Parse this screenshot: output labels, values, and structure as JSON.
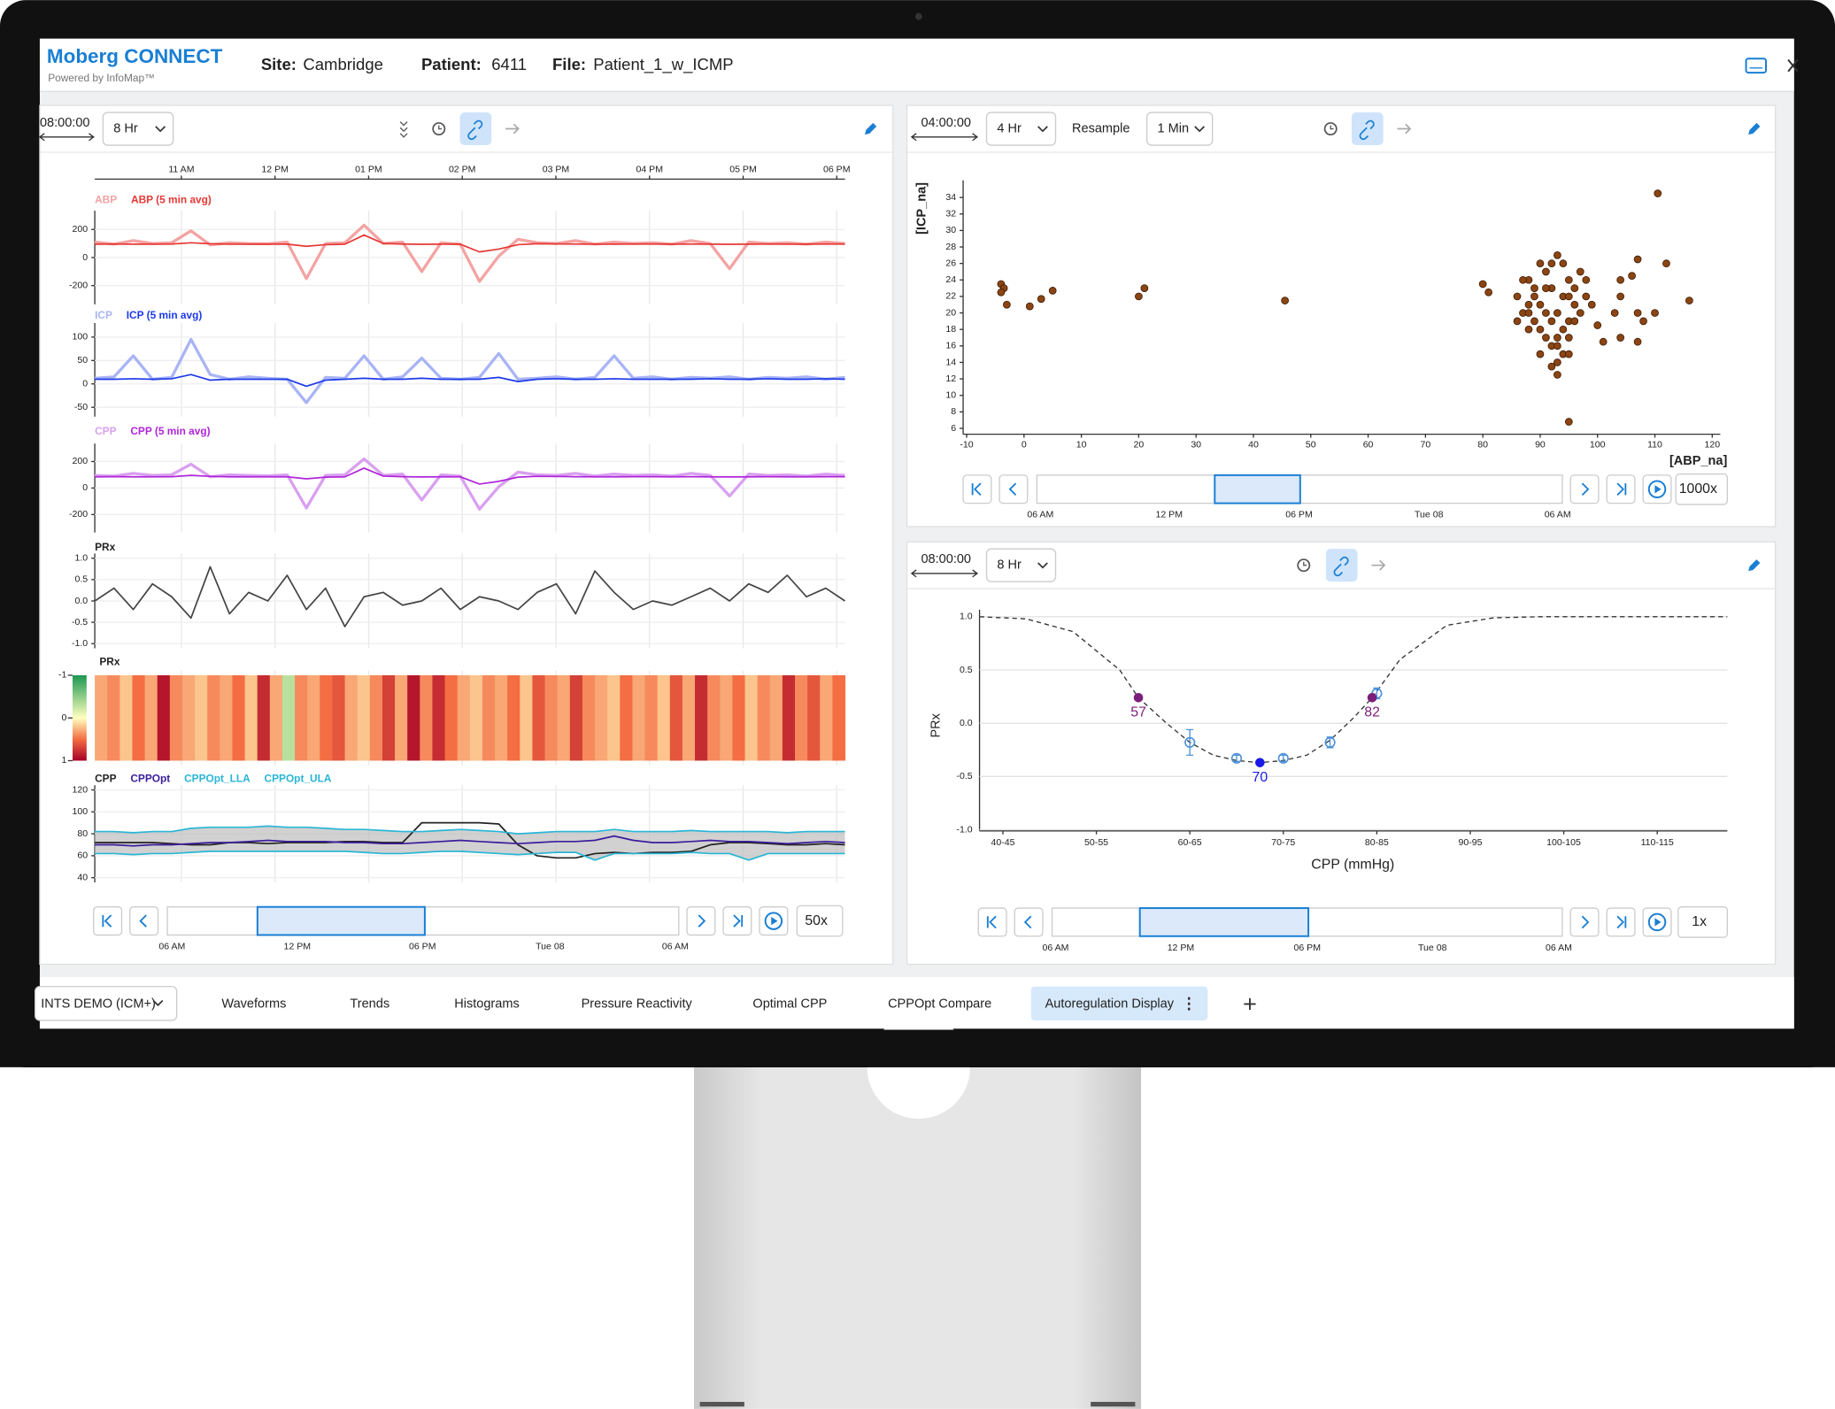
{
  "header": {
    "brand": "Moberg CONNECT",
    "tagline": "Powered by InfoMap™",
    "site_label": "Site:",
    "site": "Cambridge",
    "patient_label": "Patient:",
    "patient": "6411",
    "file_label": "File:",
    "file": "Patient_1_w_ICMP"
  },
  "tabs": {
    "profile": "INTS DEMO (ICM+)",
    "items": [
      "Waveforms",
      "Trends",
      "Histograms",
      "Pressure Reactivity",
      "Optimal CPP",
      "CPPOpt Compare",
      "Autoregulation Display"
    ],
    "active": 6
  },
  "left_panel": {
    "duration": "08:00:00",
    "window": "8 Hr",
    "time_ticks": [
      "11 AM",
      "12 PM",
      "01 PM",
      "02 PM",
      "03 PM",
      "04 PM",
      "05 PM",
      "06 PM"
    ],
    "tracks": [
      {
        "type": "line",
        "ylim": [
          -300,
          300
        ],
        "yticks": [
          200,
          0,
          -200
        ],
        "series": [
          {
            "name": "ABP",
            "color": "#f4a3a3",
            "values": [
              110,
              95,
              120,
              100,
              105,
              190,
              90,
              105,
              100,
              98,
              110,
              -150,
              100,
              105,
              230,
              100,
              110,
              -100,
              105,
              95,
              -170,
              10,
              130,
              105,
              100,
              120,
              95,
              110,
              100,
              105,
              95,
              120,
              100,
              -80,
              110,
              100,
              105,
              95,
              110,
              100
            ]
          },
          {
            "name": "ABP (5 min avg)",
            "color": "#e53935",
            "values": [
              95,
              96,
              95,
              95,
              96,
              105,
              98,
              95,
              95,
              95,
              95,
              80,
              92,
              95,
              160,
              100,
              96,
              94,
              95,
              95,
              40,
              60,
              92,
              98,
              97,
              96,
              95,
              95,
              96,
              96,
              95,
              96,
              95,
              94,
              95,
              96,
              95,
              95,
              96,
              96
            ]
          }
        ]
      },
      {
        "type": "line",
        "ylim": [
          -60,
          120
        ],
        "yticks": [
          100,
          50,
          0,
          -50
        ],
        "series": [
          {
            "name": "ICP",
            "color": "#a9b4f5",
            "values": [
              12,
              15,
              60,
              10,
              14,
              95,
              20,
              10,
              15,
              12,
              10,
              -40,
              14,
              12,
              60,
              10,
              15,
              55,
              12,
              10,
              14,
              65,
              10,
              12,
              15,
              10,
              14,
              60,
              12,
              15,
              10,
              14,
              12,
              15,
              10,
              14,
              12,
              15,
              10,
              14
            ]
          },
          {
            "name": "ICP (5 min avg)",
            "color": "#1e3ae8",
            "values": [
              10,
              10,
              11,
              10,
              11,
              20,
              8,
              10,
              10,
              10,
              10,
              -5,
              8,
              10,
              12,
              10,
              10,
              12,
              10,
              10,
              10,
              14,
              5,
              10,
              11,
              10,
              10,
              11,
              10,
              10,
              10,
              10,
              11,
              10,
              10,
              11,
              10,
              10,
              11,
              10
            ]
          }
        ]
      },
      {
        "type": "line",
        "ylim": [
          -300,
          300
        ],
        "yticks": [
          200,
          0,
          -200
        ],
        "series": [
          {
            "name": "CPP",
            "color": "#d9a0f0",
            "values": [
              95,
              90,
              110,
              95,
              100,
              180,
              85,
              100,
              95,
              92,
              100,
              -150,
              95,
              100,
              220,
              95,
              105,
              -90,
              100,
              90,
              -160,
              10,
              120,
              100,
              95,
              110,
              90,
              105,
              95,
              100,
              90,
              110,
              95,
              -60,
              105,
              95,
              100,
              90,
              105,
              95
            ]
          },
          {
            "name": "CPP (5 min avg)",
            "color": "#b026d9",
            "values": [
              85,
              86,
              85,
              85,
              86,
              95,
              88,
              85,
              85,
              85,
              85,
              70,
              82,
              85,
              150,
              90,
              86,
              84,
              85,
              85,
              30,
              50,
              82,
              88,
              87,
              86,
              85,
              85,
              86,
              86,
              85,
              86,
              85,
              84,
              85,
              86,
              85,
              85,
              86,
              86
            ]
          }
        ]
      },
      {
        "type": "line",
        "title": "PRx",
        "ylim": [
          -1,
          1
        ],
        "yticks": [
          {
            "value": 1,
            "label": "1.0"
          },
          0.5,
          {
            "value": 0,
            "label": "0.0"
          },
          -0.5,
          {
            "value": -1,
            "label": "-1.0"
          }
        ],
        "series": [
          {
            "color": "#444444",
            "values": [
              0.0,
              0.3,
              -0.2,
              0.4,
              0.1,
              -0.4,
              0.8,
              -0.3,
              0.2,
              0.0,
              0.6,
              -0.2,
              0.3,
              -0.6,
              0.1,
              0.2,
              -0.1,
              0.0,
              0.3,
              -0.2,
              0.1,
              0.0,
              -0.2,
              0.2,
              0.4,
              -0.3,
              0.7,
              0.2,
              -0.2,
              0.0,
              -0.1,
              0.1,
              0.3,
              0.0,
              0.4,
              0.2,
              0.6,
              0.1,
              0.3,
              0.0
            ]
          }
        ]
      },
      {
        "type": "heatmap",
        "title": "PRx",
        "clim": [
          -1,
          1
        ],
        "yticks": [
          -1,
          0,
          1
        ],
        "values": [
          0.3,
          0.4,
          0.2,
          0.5,
          0.3,
          0.9,
          0.4,
          0.3,
          0.2,
          0.4,
          0.3,
          0.5,
          0.2,
          0.8,
          0.3,
          -0.3,
          0.4,
          0.3,
          0.5,
          0.6,
          0.3,
          0.2,
          0.4,
          0.7,
          0.3,
          0.9,
          0.4,
          0.8,
          0.5,
          0.3,
          0.2,
          0.4,
          0.3,
          0.5,
          0.2,
          0.6,
          0.4,
          0.3,
          0.7,
          0.4,
          0.3,
          0.2,
          0.5,
          0.3,
          0.4,
          0.2,
          0.6,
          0.3,
          0.8,
          0.4,
          0.3,
          0.5,
          0.2,
          0.4,
          0.3,
          0.8,
          0.4,
          0.6,
          0.3,
          0.5
        ]
      },
      {
        "type": "band",
        "ylim": [
          40,
          120
        ],
        "yticks": [
          120,
          100,
          80,
          60,
          40
        ],
        "series": [
          {
            "name": "CPP",
            "color": "#222222",
            "values": [
              72,
              72,
              72,
              72,
              71,
              70,
              70,
              72,
              72,
              71,
              72,
              72,
              72,
              73,
              73,
              72,
              72,
              90,
              90,
              90,
              90,
              89,
              70,
              60,
              58,
              58,
              62,
              63,
              62,
              63,
              63,
              64,
              70,
              72,
              72,
              71,
              70,
              70,
              71,
              70
            ]
          },
          {
            "name": "CPPOpt",
            "color": "#3a1d9c",
            "values": [
              70,
              70,
              69,
              70,
              70,
              71,
              72,
              72,
              73,
              74,
              73,
              73,
              73,
              72,
              72,
              71,
              71,
              72,
              73,
              74,
              73,
              72,
              71,
              72,
              73,
              73,
              74,
              78,
              74,
              72,
              72,
              73,
              74,
              73,
              73,
              72,
              71,
              72,
              73,
              72
            ]
          },
          {
            "name": "CPPOpt_LLA",
            "color": "#29b6d6",
            "values": [
              62,
              62,
              61,
              62,
              62,
              63,
              64,
              64,
              64,
              64,
              64,
              64,
              64,
              64,
              63,
              62,
              62,
              63,
              64,
              64,
              63,
              62,
              61,
              62,
              63,
              63,
              56,
              62,
              62,
              62,
              62,
              63,
              62,
              62,
              56,
              62,
              62,
              62,
              62,
              62
            ]
          },
          {
            "name": "CPPOpt_ULA",
            "color": "#29b6d6",
            "values": [
              82,
              82,
              81,
              82,
              82,
              85,
              86,
              86,
              86,
              87,
              86,
              86,
              85,
              84,
              84,
              83,
              82,
              82,
              83,
              84,
              83,
              82,
              80,
              81,
              82,
              82,
              82,
              84,
              82,
              82,
              82,
              83,
              82,
              82,
              82,
              82,
              81,
              82,
              82,
              82
            ]
          }
        ]
      }
    ],
    "nav": {
      "ticks": [
        "06 AM",
        "12 PM",
        "06 PM",
        "Tue 08",
        "06 AM"
      ],
      "speed": "50x"
    }
  },
  "scatter_panel": {
    "duration": "04:00:00",
    "window": "4 Hr",
    "resample_label": "Resample",
    "resample": "1 Min",
    "chart_data": {
      "type": "scatter",
      "xlabel": "[ABP_na]",
      "ylabel": "[ICP_na]",
      "color": "#8b4513",
      "x": [
        88,
        89,
        90,
        91,
        92,
        93,
        94,
        95,
        96,
        89,
        90,
        91,
        92,
        93,
        94,
        95,
        88,
        87,
        86,
        87,
        90,
        92,
        94,
        93,
        91,
        95,
        96,
        97,
        98,
        97,
        96,
        92,
        91,
        90,
        94,
        93,
        89,
        88,
        86,
        95,
        98,
        99,
        93,
        88,
        -4,
        -3.5,
        -4,
        -3,
        1,
        3,
        5,
        20,
        21,
        45.5,
        80,
        81,
        95,
        110.5,
        104,
        106,
        107,
        112,
        104,
        103,
        107,
        108,
        110,
        116,
        104,
        100,
        95,
        92,
        93,
        101,
        107
      ],
      "values": [
        24,
        22,
        21,
        25,
        23,
        20,
        22,
        24,
        21,
        19,
        18,
        20,
        19,
        17,
        18,
        19,
        21,
        20,
        22,
        24,
        26,
        26,
        26,
        27,
        23,
        22,
        23,
        25,
        22,
        20,
        19,
        16,
        17,
        15,
        15,
        16,
        23,
        18,
        19,
        17,
        24,
        21,
        14,
        20,
        23.5,
        23,
        22.5,
        21,
        20.8,
        21.7,
        22.7,
        22,
        23,
        21.5,
        23.5,
        22.5,
        6.8,
        34.5,
        24,
        24.5,
        26.5,
        26,
        22,
        20,
        20,
        19,
        20,
        21.5,
        17,
        18.5,
        15,
        13.5,
        12.5,
        16.5,
        16.5
      ],
      "xlim": [
        -10,
        121
      ],
      "ylim": [
        6,
        36
      ],
      "xticks": [
        -10,
        0,
        10,
        20,
        30,
        40,
        50,
        60,
        70,
        80,
        90,
        100,
        110,
        120
      ],
      "yticks": [
        6,
        8,
        10,
        12,
        14,
        16,
        18,
        20,
        22,
        24,
        26,
        28,
        30,
        32,
        34
      ]
    },
    "nav": {
      "ticks": [
        "06 AM",
        "12 PM",
        "06 PM",
        "Tue 08",
        "06 AM"
      ],
      "speed": "1000x"
    }
  },
  "prx_panel": {
    "duration": "08:00:00",
    "window": "8 Hr",
    "chart_data": {
      "type": "line",
      "xlabel": "CPP (mmHg)",
      "ylabel": "PRx",
      "xlim": [
        40,
        120
      ],
      "ylim": [
        -1,
        1
      ],
      "grid": true,
      "xticks": [
        {
          "value": 42.5,
          "label": "40-45"
        },
        {
          "value": 52.5,
          "label": "50-55"
        },
        {
          "value": 62.5,
          "label": "60-65"
        },
        {
          "value": 72.5,
          "label": "70-75"
        },
        {
          "value": 82.5,
          "label": "80-85"
        },
        {
          "value": 92.5,
          "label": "90-95"
        },
        {
          "value": 102.5,
          "label": "100-105"
        },
        {
          "value": 112.5,
          "label": "110-115"
        }
      ],
      "yticks": [
        {
          "value": 1,
          "label": "1.0"
        },
        0.5,
        {
          "value": 0,
          "label": "0.0"
        },
        -0.5,
        {
          "value": -1,
          "label": "-1.0"
        }
      ],
      "fit": {
        "color": "#333333",
        "x": [
          40,
          45,
          50,
          55,
          57,
          60,
          62.5,
          65,
          67.5,
          70,
          72.5,
          75,
          77.5,
          80,
          82,
          85,
          90,
          95,
          100,
          110,
          120
        ],
        "values": [
          1.0,
          0.98,
          0.86,
          0.5,
          0.24,
          0.0,
          -0.18,
          -0.3,
          -0.35,
          -0.37,
          -0.35,
          -0.3,
          -0.16,
          0.05,
          0.24,
          0.6,
          0.92,
          0.99,
          1.0,
          1.0,
          1.0
        ]
      },
      "binned": {
        "color": "#4a90d9",
        "x": [
          62.5,
          67.5,
          72.5,
          77.5,
          82.5
        ],
        "values": [
          -0.18,
          -0.33,
          -0.33,
          -0.18,
          0.28
        ],
        "errors": [
          0.12,
          0.03,
          0.03,
          0.05,
          0.05
        ]
      },
      "key_points": {
        "x": [
          57,
          70,
          82
        ],
        "values": [
          0.24,
          -0.37,
          0.24
        ],
        "colors": [
          "#7b1f7a",
          "#1a1ae6",
          "#7b1f7a"
        ]
      }
    },
    "nav": {
      "ticks": [
        "06 AM",
        "12 PM",
        "06 PM",
        "Tue 08",
        "06 AM"
      ],
      "speed": "1x"
    }
  }
}
